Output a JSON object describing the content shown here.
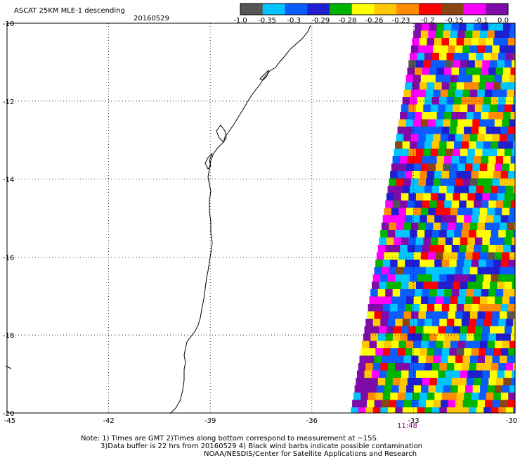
{
  "title": "ASCAT 25KM MLE-1 descending",
  "date": "20160529",
  "colorbar": {
    "colors": [
      "#555555",
      "#00c4ff",
      "#0a5cff",
      "#1f1fd0",
      "#00b400",
      "#ffff00",
      "#ffc800",
      "#ff8c00",
      "#ff0000",
      "#8b4513",
      "#ff00ff",
      "#7f0ca8"
    ],
    "labels": [
      "-1.0",
      "-0.35",
      "-0.3",
      "-0.29",
      "-0.28",
      "-0.26",
      "-0.23",
      "-0.2",
      "-0.15",
      "-0.1",
      "0.0"
    ]
  },
  "map": {
    "lon_range": [
      -45,
      -30
    ],
    "lat_range": [
      -20,
      -10
    ],
    "lon_ticks": [
      "-45",
      "-42",
      "-39",
      "-36",
      "-33",
      "-30"
    ],
    "lat_ticks": [
      "-10",
      "-12",
      "-14",
      "-16",
      "-18",
      "-20"
    ],
    "grid": "dotted"
  },
  "pass_time": "11:48",
  "notes": {
    "line1": "Note: 1) Times are GMT 2)Times along bottom correspond to measurement at ~15S",
    "line2": "3)Data buffer is 22 hrs from 20160529 4) Black wind barbs indicate possible contamination",
    "line3": "NOAA/NESDIS/Center for Satellite Applications and Research"
  }
}
